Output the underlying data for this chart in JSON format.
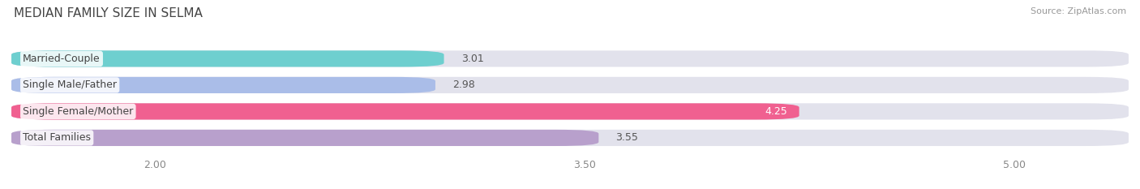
{
  "title": "MEDIAN FAMILY SIZE IN SELMA",
  "source": "Source: ZipAtlas.com",
  "categories": [
    "Married-Couple",
    "Single Male/Father",
    "Single Female/Mother",
    "Total Families"
  ],
  "values": [
    3.01,
    2.98,
    4.25,
    3.55
  ],
  "bar_colors": [
    "#6ecfcf",
    "#aabde8",
    "#f06090",
    "#b8a0cc"
  ],
  "bar_bg_color": "#e2e2ec",
  "xlim_min": 1.5,
  "xlim_max": 5.4,
  "xticks": [
    2.0,
    3.5,
    5.0
  ],
  "xtick_labels": [
    "2.00",
    "3.50",
    "5.00"
  ],
  "label_fontsize": 9,
  "value_fontsize": 9,
  "title_fontsize": 11,
  "bar_height": 0.62,
  "background_color": "#ffffff",
  "grid_color": "#ffffff",
  "text_color_dark": "#555555",
  "text_color_light": "#ffffff",
  "source_color": "#999999"
}
